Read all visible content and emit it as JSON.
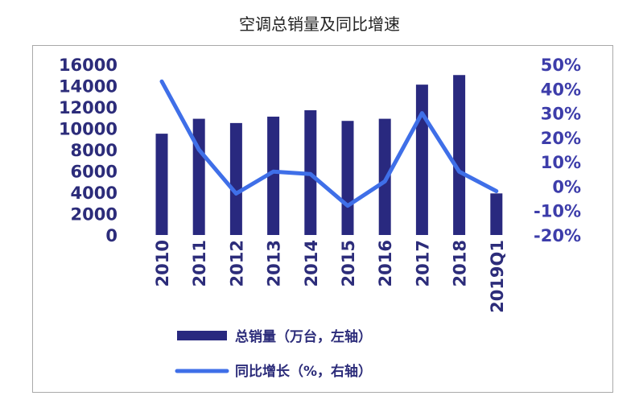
{
  "title": "空调总销量及同比增速",
  "colors": {
    "bar": "#29297f",
    "line": "#3f6fe8",
    "left_axis_text": "#2c2c7a",
    "right_axis_text": "#3d3daa"
  },
  "chart_data": {
    "type": "bar",
    "title": "空调总销量及同比增速",
    "categories": [
      "2010",
      "2011",
      "2012",
      "2013",
      "2014",
      "2015",
      "2016",
      "2017",
      "2018",
      "2019Q1"
    ],
    "left_axis": {
      "ylim": [
        0,
        16000
      ],
      "ticks": [
        "16000",
        "14000",
        "12000",
        "10000",
        "8000",
        "6000",
        "4000",
        "2000",
        "0"
      ]
    },
    "right_axis": {
      "ylim": [
        -20,
        50
      ],
      "ticks": [
        "50%",
        "40%",
        "30%",
        "20%",
        "10%",
        "0%",
        "-10%",
        "-20%"
      ]
    },
    "series": [
      {
        "name": "总销量（万台，左轴）",
        "type": "bar",
        "axis": "left",
        "values": [
          9500,
          10900,
          10500,
          11100,
          11700,
          10700,
          10900,
          14100,
          15000,
          3900
        ]
      },
      {
        "name": "同比增长（%，右轴）",
        "type": "line",
        "axis": "right",
        "values": [
          43,
          15,
          -3,
          6,
          5,
          -8,
          2,
          30,
          6,
          -2
        ]
      }
    ],
    "legend_placement": "bottom",
    "grid": false
  }
}
